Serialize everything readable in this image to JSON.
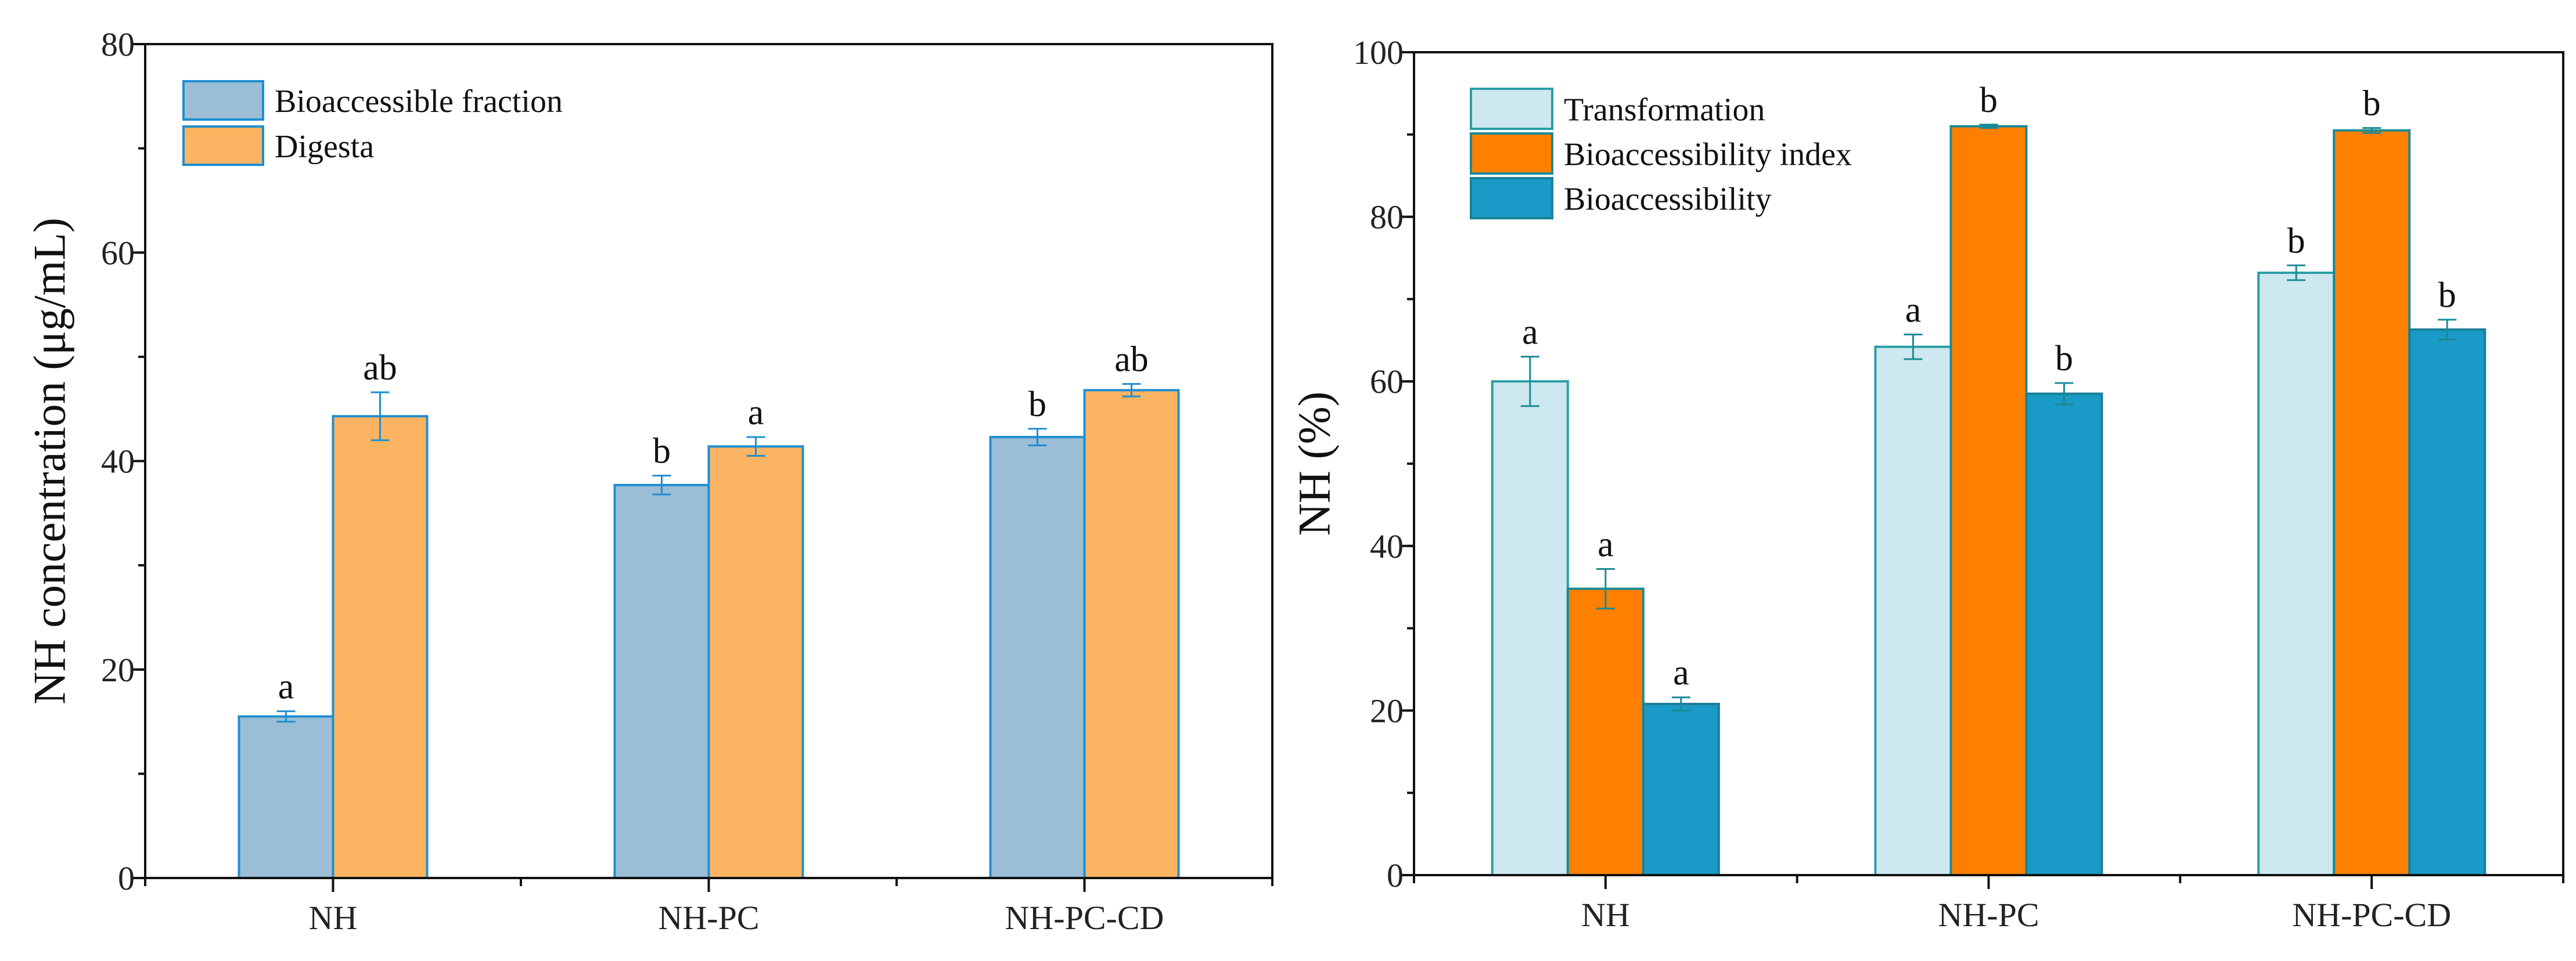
{
  "chart_data": [
    {
      "type": "bar",
      "title": "",
      "xlabel": "",
      "ylabel": "NH concentration (μg/mL)",
      "ylim": [
        0,
        80
      ],
      "yticks": [
        0,
        20,
        40,
        60,
        80
      ],
      "categories": [
        "NH",
        "NH-PC",
        "NH-PC-CD"
      ],
      "legend_position": "top-left",
      "series": [
        {
          "name": "Bioaccessible fraction",
          "color": "#9bbdd6",
          "edge": "#1e8fd0",
          "values": [
            15.5,
            37.7,
            42.3
          ],
          "errors": [
            0.5,
            0.9,
            0.8
          ],
          "letters": [
            "a",
            "b",
            "b"
          ]
        },
        {
          "name": "Digesta",
          "color": "#fdb462",
          "edge": "#1e8fd0",
          "values": [
            44.3,
            41.4,
            46.8
          ],
          "errors": [
            2.3,
            0.9,
            0.6
          ],
          "letters": [
            "ab",
            "a",
            "ab"
          ]
        }
      ]
    },
    {
      "type": "bar",
      "title": "",
      "xlabel": "",
      "ylabel": "NH (%)",
      "ylim": [
        0,
        100
      ],
      "yticks": [
        0,
        20,
        40,
        60,
        80,
        100
      ],
      "categories": [
        "NH",
        "NH-PC",
        "NH-PC-CD"
      ],
      "legend_position": "top-left",
      "series": [
        {
          "name": "Transformation",
          "color": "#cde8ee",
          "edge": "#2a9ea6",
          "values": [
            60.0,
            64.2,
            73.2
          ],
          "errors": [
            3.0,
            1.5,
            0.9
          ],
          "letters": [
            "a",
            "a",
            "b"
          ]
        },
        {
          "name": "Bioaccessibility index",
          "color": "#ff8000",
          "edge": "#1a8a96",
          "values": [
            34.8,
            91.0,
            90.5
          ],
          "errors": [
            2.4,
            0.2,
            0.3
          ],
          "letters": [
            "a",
            "b",
            "b"
          ]
        },
        {
          "name": "Bioaccessibility",
          "color": "#1a9ac6",
          "edge": "#1a7f96",
          "values": [
            20.8,
            58.5,
            66.3
          ],
          "errors": [
            0.8,
            1.3,
            1.2
          ],
          "letters": [
            "a",
            "b",
            "b"
          ]
        }
      ]
    }
  ]
}
